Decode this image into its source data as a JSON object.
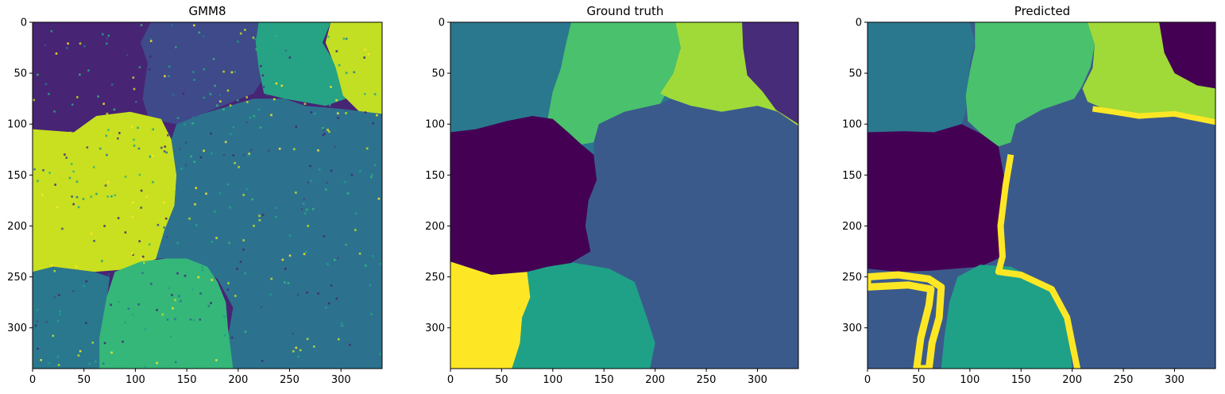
{
  "chart_data": [
    {
      "type": "heatmap",
      "title": "GMM8",
      "xlabel": "",
      "ylabel": "",
      "xlim": [
        0,
        340
      ],
      "ylim": [
        340,
        0
      ],
      "xticks": [
        "0",
        "50",
        "100",
        "150",
        "200",
        "250",
        "300"
      ],
      "yticks": [
        "0",
        "50",
        "100",
        "150",
        "200",
        "250",
        "300"
      ],
      "grid": false,
      "noisy": true,
      "regions": [
        {
          "label": "dark purple (top-left)",
          "color": "#482475",
          "bounds": {
            "x": [
              0,
              110
            ],
            "y": [
              0,
              105
            ]
          }
        },
        {
          "label": "slate blue (top-middle)",
          "color": "#3e4a89",
          "bounds": {
            "x": [
              110,
              220
            ],
            "y": [
              0,
              110
            ]
          }
        },
        {
          "label": "teal green (top-right)",
          "color": "#26a384",
          "bounds": {
            "x": [
              220,
              290
            ],
            "y": [
              0,
              80
            ]
          }
        },
        {
          "label": "yellow-green (top-right corner)",
          "color": "#c2df23",
          "bounds": {
            "x": [
              290,
              340
            ],
            "y": [
              0,
              90
            ]
          }
        },
        {
          "label": "yellow-green (left middle)",
          "color": "#c8e020",
          "bounds": {
            "x": [
              0,
              135
            ],
            "y": [
              85,
              245
            ]
          }
        },
        {
          "label": "teal (center / right)",
          "color": "#2c728e",
          "bounds": {
            "x": [
              130,
              340
            ],
            "y": [
              80,
              340
            ]
          }
        },
        {
          "label": "teal blue (bottom-left)",
          "color": "#2a788e",
          "bounds": {
            "x": [
              0,
              75
            ],
            "y": [
              240,
              340
            ]
          }
        },
        {
          "label": "green (bottom-middle)",
          "color": "#35b779",
          "bounds": {
            "x": [
              70,
              190
            ],
            "y": [
              230,
              340
            ]
          }
        }
      ]
    },
    {
      "type": "heatmap",
      "title": "Ground truth",
      "xlabel": "",
      "ylabel": "",
      "xlim": [
        0,
        340
      ],
      "ylim": [
        340,
        0
      ],
      "xticks": [
        "0",
        "50",
        "100",
        "150",
        "200",
        "250",
        "300"
      ],
      "yticks": [
        "0",
        "50",
        "100",
        "150",
        "200",
        "250",
        "300"
      ],
      "grid": false,
      "noisy": false,
      "regions": [
        {
          "label": "teal (top-left)",
          "color": "#2a788e",
          "bounds": {
            "x": [
              0,
              115
            ],
            "y": [
              0,
              105
            ]
          }
        },
        {
          "label": "green (top-middle)",
          "color": "#4ac16d",
          "bounds": {
            "x": [
              100,
              225
            ],
            "y": [
              0,
              120
            ]
          }
        },
        {
          "label": "yellow-green (top-right)",
          "color": "#a0da39",
          "bounds": {
            "x": [
              210,
              340
            ],
            "y": [
              0,
              100
            ]
          }
        },
        {
          "label": "purple (top-right corner)",
          "color": "#472c7a",
          "bounds": {
            "x": [
              285,
              340
            ],
            "y": [
              0,
              80
            ]
          }
        },
        {
          "label": "dark purple (left middle)",
          "color": "#440154",
          "bounds": {
            "x": [
              0,
              140
            ],
            "y": [
              90,
              250
            ]
          }
        },
        {
          "label": "slate blue (center / right)",
          "color": "#3b5a8c",
          "bounds": {
            "x": [
              135,
              340
            ],
            "y": [
              75,
              340
            ]
          }
        },
        {
          "label": "yellow (bottom-left)",
          "color": "#fde725",
          "bounds": {
            "x": [
              0,
              75
            ],
            "y": [
              235,
              340
            ]
          }
        },
        {
          "label": "teal green (bottom-middle)",
          "color": "#1fa187",
          "bounds": {
            "x": [
              65,
              195
            ],
            "y": [
              235,
              340
            ]
          }
        }
      ]
    },
    {
      "type": "heatmap",
      "title": "Predicted",
      "xlabel": "",
      "ylabel": "",
      "xlim": [
        0,
        340
      ],
      "ylim": [
        340,
        0
      ],
      "xticks": [
        "0",
        "50",
        "100",
        "150",
        "200",
        "250",
        "300"
      ],
      "yticks": [
        "0",
        "50",
        "100",
        "150",
        "200",
        "250",
        "300"
      ],
      "grid": false,
      "noisy": false,
      "regions": [
        {
          "label": "slate blue (background)",
          "color": "#3b5a8c",
          "bounds": {
            "x": [
              0,
              340
            ],
            "y": [
              0,
              340
            ]
          }
        },
        {
          "label": "teal (top-left)",
          "color": "#2a788e",
          "bounds": {
            "x": [
              0,
              110
            ],
            "y": [
              0,
              105
            ]
          }
        },
        {
          "label": "green (top-middle)",
          "color": "#4ac16d",
          "bounds": {
            "x": [
              100,
              225
            ],
            "y": [
              0,
              120
            ]
          }
        },
        {
          "label": "yellow-green (top-right)",
          "color": "#a0da39",
          "bounds": {
            "x": [
              210,
              340
            ],
            "y": [
              0,
              95
            ]
          }
        },
        {
          "label": "dark purple (top-right corner)",
          "color": "#440154",
          "bounds": {
            "x": [
              285,
              340
            ],
            "y": [
              0,
              65
            ]
          }
        },
        {
          "label": "dark purple (left middle)",
          "color": "#440154",
          "bounds": {
            "x": [
              0,
              135
            ],
            "y": [
              85,
              245
            ]
          }
        },
        {
          "label": "teal green (bottom-middle)",
          "color": "#1fa187",
          "bounds": {
            "x": [
              70,
              195
            ],
            "y": [
              235,
              340
            ]
          }
        },
        {
          "label": "yellow (boundary artifacts)",
          "color": "#fde725",
          "bounds": {
            "x": [
              0,
              340
            ],
            "y": [
              0,
              340
            ]
          }
        }
      ]
    }
  ]
}
